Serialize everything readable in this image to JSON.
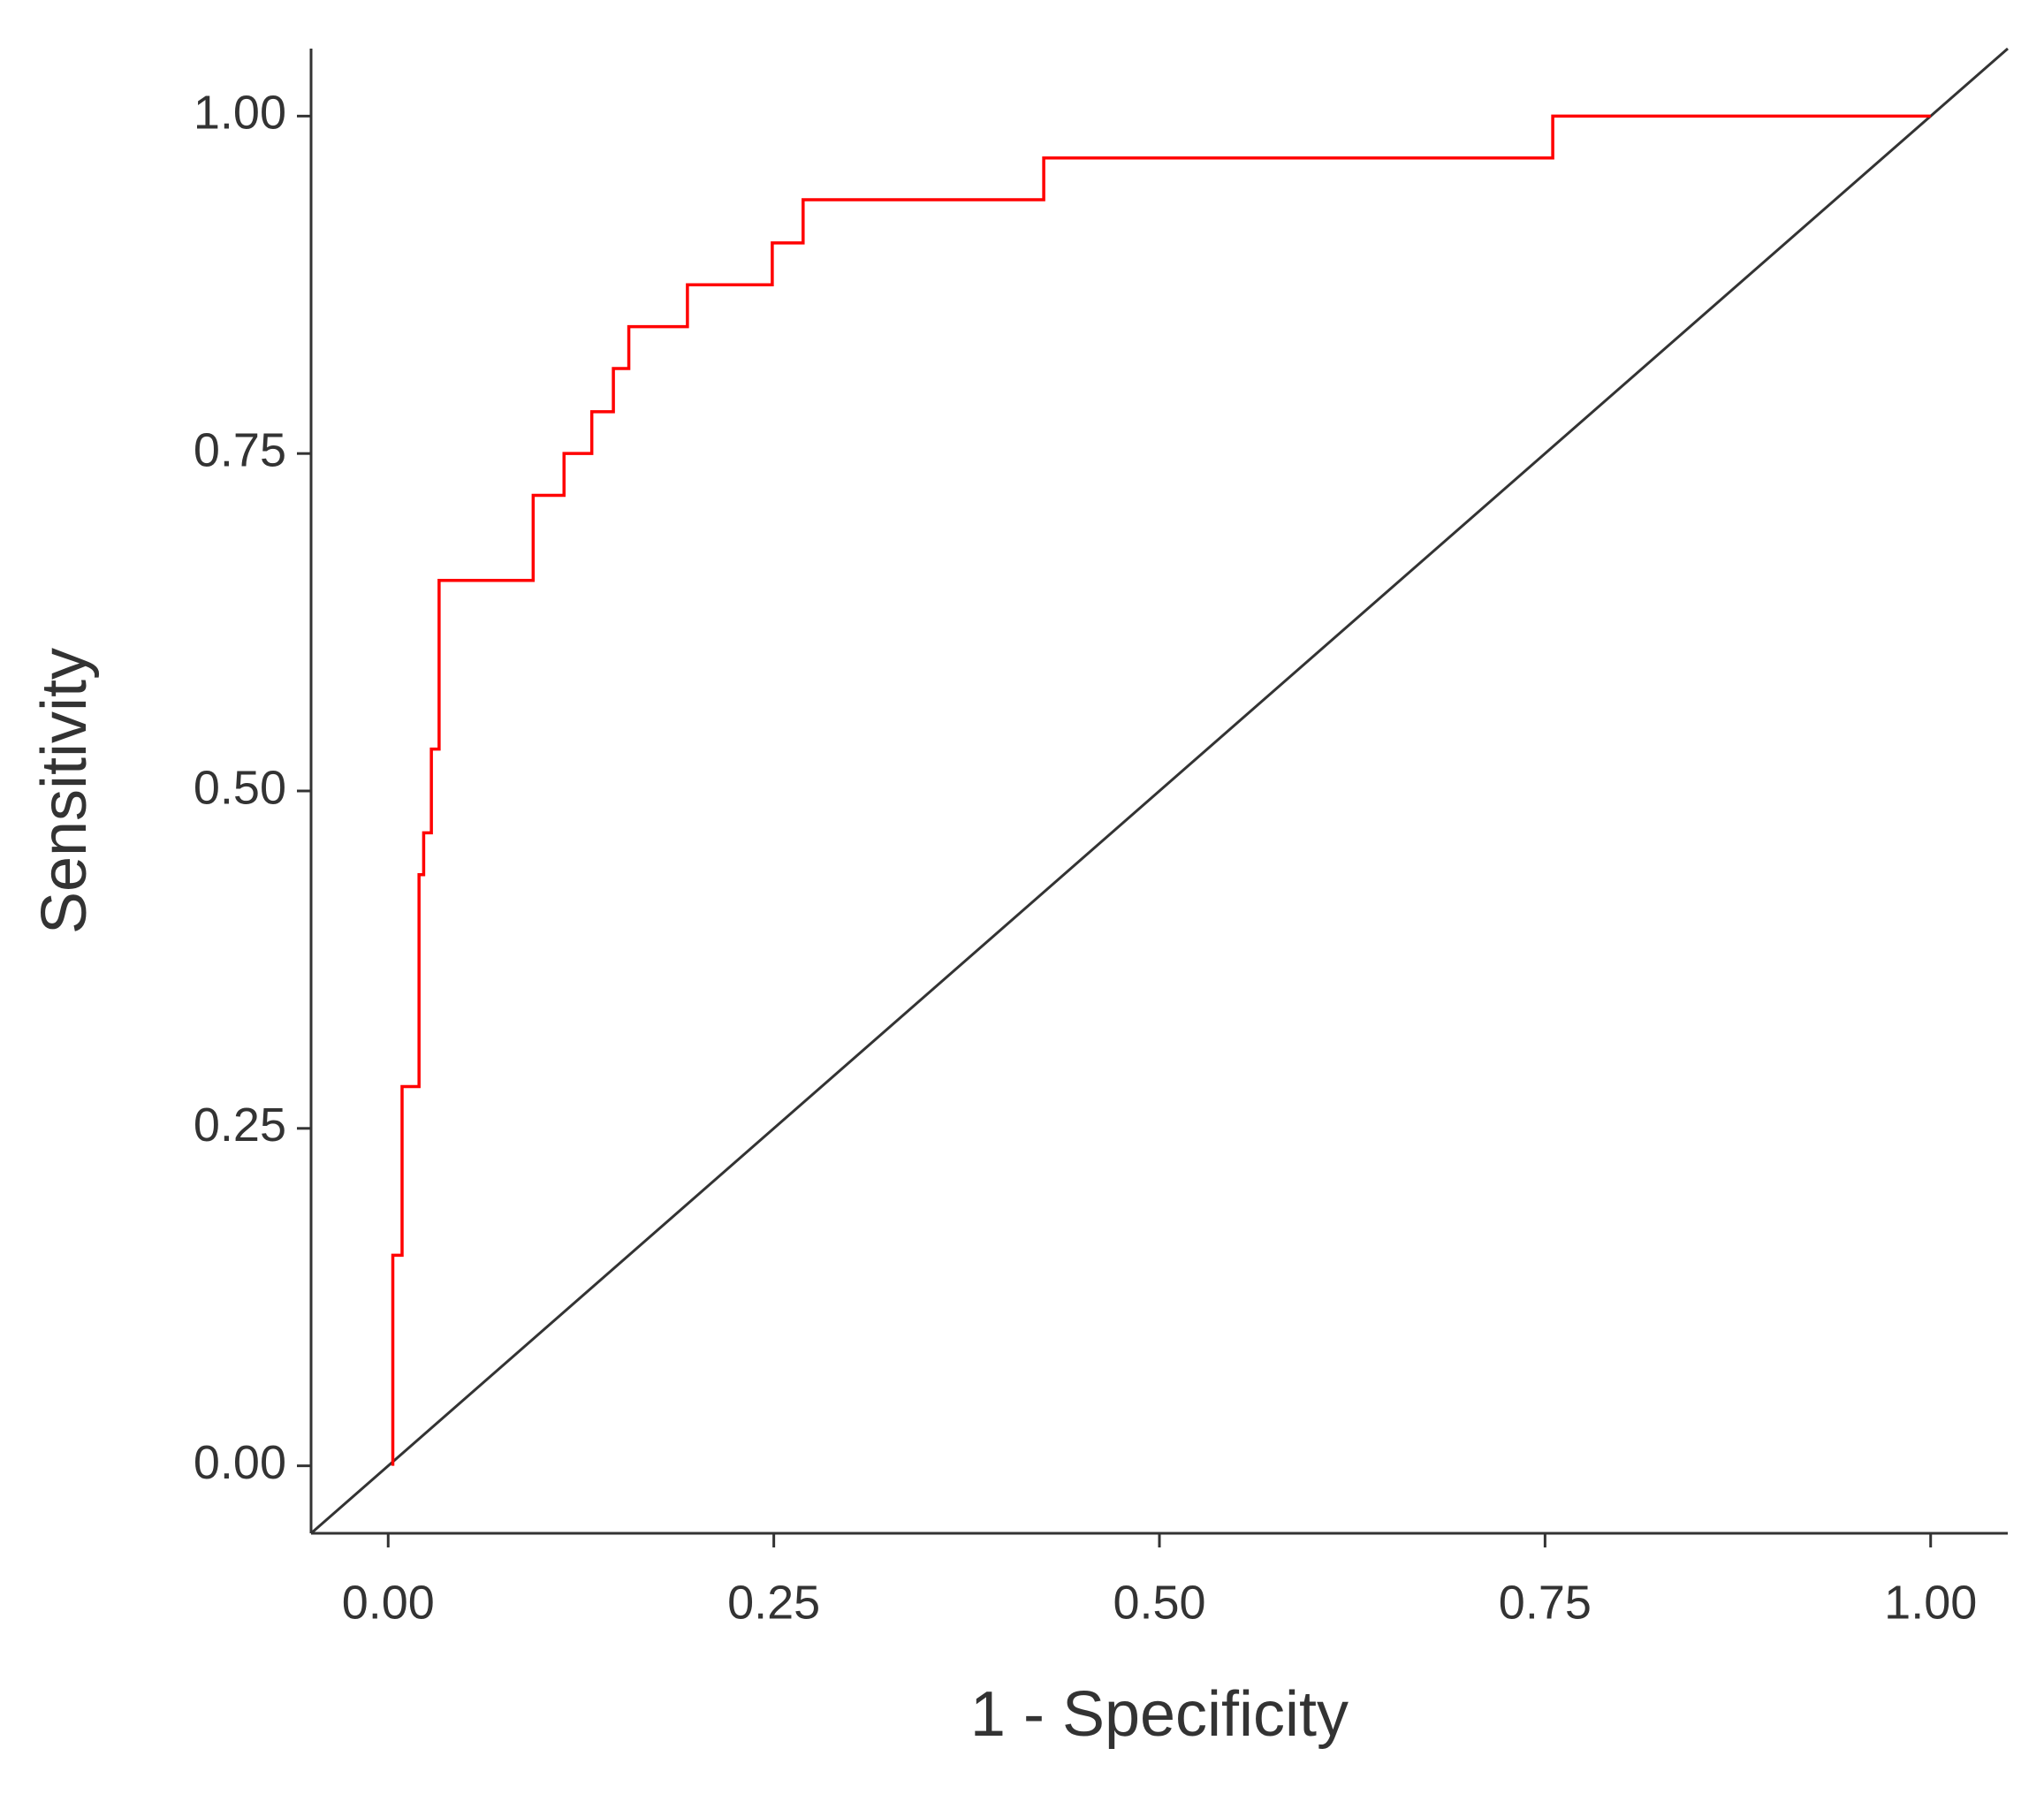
{
  "chart_data": {
    "type": "line",
    "x_label": "1 - Specificity",
    "y_label": "Sensitivity",
    "x": [
      0.003,
      0.003,
      0.009,
      0.009,
      0.02,
      0.02,
      0.023,
      0.023,
      0.028,
      0.028,
      0.033,
      0.033,
      0.094,
      0.094,
      0.114,
      0.114,
      0.132,
      0.132,
      0.146,
      0.146,
      0.156,
      0.156,
      0.194,
      0.194,
      0.249,
      0.249,
      0.269,
      0.269,
      0.425,
      0.425,
      0.755,
      0.755,
      1.0
    ],
    "series": [
      {
        "color": "#ff0000",
        "values": [
          0,
          0.156,
          0.156,
          0.281,
          0.281,
          0.438,
          0.438,
          0.469,
          0.469,
          0.531,
          0.531,
          0.656,
          0.656,
          0.719,
          0.719,
          0.75,
          0.75,
          0.781,
          0.781,
          0.813,
          0.813,
          0.844,
          0.844,
          0.875,
          0.875,
          0.906,
          0.906,
          0.938,
          0.938,
          0.969,
          0.969,
          1.0,
          1.0
        ]
      }
    ],
    "reference_line": {
      "slope": 1,
      "intercept": 0,
      "color": "#333333"
    },
    "xlim": [
      -0.05,
      1.05
    ],
    "ylim": [
      -0.05,
      1.05
    ],
    "xticks": [
      {
        "value": 0,
        "label": "0.00"
      },
      {
        "value": 0.25,
        "label": "0.25"
      },
      {
        "value": 0.5,
        "label": "0.50"
      },
      {
        "value": 0.75,
        "label": "0.75"
      },
      {
        "value": 1,
        "label": "1.00"
      }
    ],
    "yticks": [
      {
        "value": 0,
        "label": "0.00"
      },
      {
        "value": 0.25,
        "label": "0.25"
      },
      {
        "value": 0.5,
        "label": "0.50"
      },
      {
        "value": 0.75,
        "label": "0.75"
      },
      {
        "value": 1,
        "label": "1.00"
      }
    ],
    "grid": false
  }
}
